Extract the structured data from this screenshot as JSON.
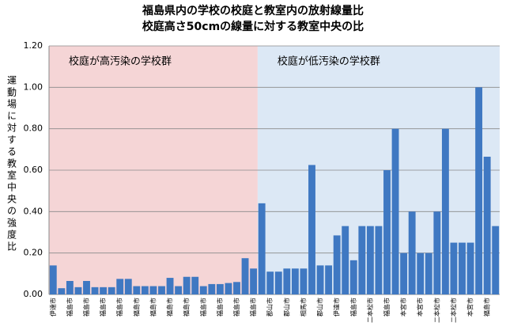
{
  "chart_data": {
    "type": "bar",
    "title": [
      "福島県内の学校の校庭と教室内の放射線量比",
      "校庭高さ50cmの線量に対する教室中央の比"
    ],
    "y_label": "運動場に対する教室中央の強度比",
    "color": "#3f78c2",
    "regions": [
      {
        "label": "校庭が高汚染の学校群",
        "color": "#f5d5d6",
        "count": 25
      },
      {
        "label": "校庭が低汚染の学校群",
        "color": "#dce8f5",
        "count": 29
      }
    ],
    "categories": [
      "伊達市",
      null,
      "福島市",
      null,
      "福島市",
      null,
      "福島市",
      null,
      "福島市",
      null,
      "福島市",
      null,
      "福島市",
      null,
      "福島市",
      null,
      "福島市",
      null,
      "福島市",
      null,
      "福島市",
      null,
      "福島市",
      null,
      "福島市",
      null,
      "郡山市",
      null,
      "郡山市",
      null,
      "相馬市",
      null,
      "郡山市",
      null,
      "伊達市",
      null,
      "福島市",
      null,
      "二本松市",
      null,
      "福島市",
      null,
      "本宮市",
      null,
      "本宮市",
      null,
      "二本松市",
      null,
      "二本松市",
      null,
      "本宮市",
      null,
      "福島市",
      null
    ],
    "values": [
      0.14,
      0.03,
      0.065,
      0.035,
      0.065,
      0.035,
      0.035,
      0.035,
      0.075,
      0.075,
      0.04,
      0.04,
      0.04,
      0.04,
      0.08,
      0.04,
      0.085,
      0.085,
      0.04,
      0.05,
      0.05,
      0.055,
      0.06,
      0.175,
      0.125,
      0.44,
      0.11,
      0.11,
      0.125,
      0.125,
      0.125,
      0.625,
      0.14,
      0.14,
      0.285,
      0.33,
      0.165,
      0.33,
      0.33,
      0.33,
      0.6,
      0.8,
      0.2,
      0.4,
      0.2,
      0.2,
      0.4,
      0.8,
      0.25,
      0.25,
      0.25,
      1.0,
      0.665,
      0.33
    ],
    "ylim": [
      0,
      1.2
    ],
    "yticks": [
      {
        "value": 0,
        "label": "0.00"
      },
      {
        "value": 0.2,
        "label": "0.20"
      },
      {
        "value": 0.4,
        "label": "0.40"
      },
      {
        "value": 0.6,
        "label": "0.60"
      },
      {
        "value": 0.8,
        "label": "0.80"
      },
      {
        "value": 1.0,
        "label": "1.00"
      },
      {
        "value": 1.2,
        "label": "1.20"
      }
    ],
    "grid": true
  }
}
